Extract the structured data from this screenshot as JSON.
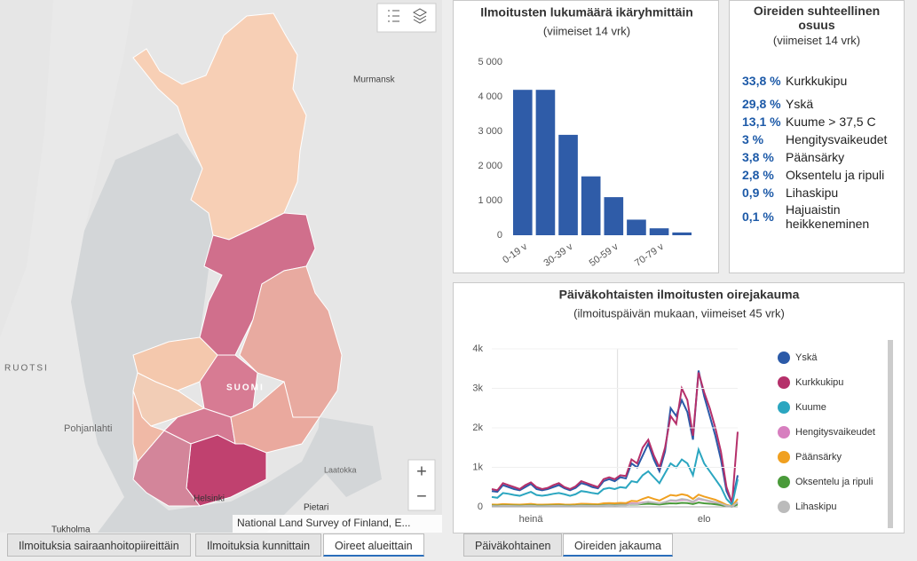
{
  "map": {
    "labels": {
      "murmansk": "Murmansk",
      "ruotsi": "RUOTSI",
      "pohjanlahti": "Pohjanlahti",
      "suomi": "SUOMI",
      "helsinki": "Helsinki",
      "pietari": "Pietari",
      "laatokka": "Laatokka",
      "tukholma": "Tukholma"
    },
    "attribution": "National Land Survey of Finland, E...",
    "zoom_in": "+",
    "zoom_out": "−"
  },
  "tabs_left": [
    "Ilmoituksia sairaanhoitopiireittäin",
    "Ilmoituksia kunnittain",
    "Oireet alueittain"
  ],
  "tabs_right": [
    "Päiväkohtainen",
    "Oireiden jakauma"
  ],
  "symptoms": {
    "title": "Oireiden suhteellinen osuus",
    "subtitle": "(viimeiset 14 vrk)",
    "rows": [
      {
        "share": "33,8 %",
        "label": "Kurkkukipu"
      },
      {
        "share": "29,8 %",
        "label": "Yskä"
      },
      {
        "share": "13,1 %",
        "label": "Kuume > 37,5 C"
      },
      {
        "share": "3 %",
        "label": "Hengitysvaikeudet"
      },
      {
        "share": "3,8 %",
        "label": "Päänsärky"
      },
      {
        "share": "2,8 %",
        "label": "Oksentelu ja ripuli"
      },
      {
        "share": "0,9 %",
        "label": "Lihaskipu"
      },
      {
        "share": "0,1 %",
        "label": "Hajuaistin heikkeneminen"
      }
    ]
  },
  "chart_data": [
    {
      "type": "bar",
      "title": "Ilmoitusten lukumäärä ikäryhmittäin",
      "subtitle": "(viimeiset 14 vrk)",
      "categories": [
        "0-19 v",
        null,
        "30-39 v",
        null,
        "50-59 v",
        null,
        "70-79 v",
        null
      ],
      "values": [
        4200,
        4200,
        2900,
        1700,
        1100,
        450,
        200,
        80
      ],
      "color": "#2f5ca8",
      "ylim": [
        0,
        5000
      ],
      "yticks": [
        {
          "value": 0,
          "label": "0"
        },
        {
          "value": 1000,
          "label": "1 000"
        },
        {
          "value": 2000,
          "label": "2 000"
        },
        {
          "value": 3000,
          "label": "3 000"
        },
        {
          "value": 4000,
          "label": "4 000"
        },
        {
          "value": 5000,
          "label": "5 000"
        }
      ],
      "grid": false
    },
    {
      "type": "line",
      "title": "Päiväkohtaisten ilmoitusten oirejakauma",
      "subtitle": "(ilmoituspäivän mukaan, viimeiset 45 vrk)",
      "categories": [
        null,
        null,
        null,
        null,
        null,
        null,
        null,
        "heinä",
        null,
        null,
        null,
        null,
        null,
        null,
        null,
        null,
        null,
        null,
        null,
        null,
        null,
        null,
        null,
        null,
        null,
        null,
        null,
        null,
        null,
        null,
        null,
        null,
        null,
        null,
        null,
        null,
        null,
        null,
        "elo",
        null,
        null,
        null,
        null,
        null,
        null
      ],
      "ylim": [
        0,
        4000
      ],
      "yticks": [
        0,
        {
          "value": 1000,
          "label": "1k"
        },
        {
          "value": 2000,
          "label": "2k"
        },
        {
          "value": 3000,
          "label": "3k"
        },
        {
          "value": 4000,
          "label": "4k"
        }
      ],
      "series": [
        {
          "name": "Yskä",
          "color": "#2b5aa8",
          "values": [
            400,
            380,
            550,
            500,
            450,
            420,
            500,
            580,
            450,
            420,
            450,
            500,
            550,
            470,
            420,
            480,
            600,
            560,
            500,
            470,
            650,
            700,
            650,
            750,
            720,
            1100,
            1000,
            1300,
            1600,
            1200,
            900,
            1400,
            2500,
            2300,
            2700,
            2400,
            1700,
            3450,
            2800,
            2300,
            1800,
            1200,
            400,
            100,
            800
          ]
        },
        {
          "name": "Kurkkukipu",
          "color": "#b5306a",
          "values": [
            450,
            420,
            600,
            550,
            500,
            450,
            550,
            620,
            500,
            450,
            480,
            550,
            600,
            500,
            450,
            520,
            650,
            600,
            550,
            500,
            700,
            750,
            700,
            800,
            780,
            1200,
            1100,
            1500,
            1700,
            1300,
            1000,
            1500,
            2300,
            2100,
            3000,
            2700,
            1800,
            3400,
            2900,
            2500,
            2000,
            1400,
            500,
            100,
            1900
          ]
        },
        {
          "name": "Kuume",
          "color": "#2ba6c0",
          "values": [
            250,
            230,
            350,
            330,
            300,
            280,
            330,
            380,
            300,
            280,
            300,
            330,
            350,
            320,
            280,
            320,
            400,
            380,
            350,
            330,
            450,
            480,
            450,
            500,
            480,
            650,
            620,
            800,
            900,
            750,
            600,
            850,
            1100,
            1000,
            1200,
            1100,
            800,
            1450,
            1100,
            900,
            700,
            500,
            200,
            50,
            700
          ]
        },
        {
          "name": "Hengitysvaikeudet",
          "color": "#d77fbf",
          "values": [
            40,
            35,
            50,
            45,
            40,
            40,
            45,
            55,
            40,
            40,
            40,
            45,
            50,
            45,
            40,
            45,
            55,
            50,
            50,
            45,
            60,
            65,
            60,
            70,
            65,
            90,
            85,
            110,
            130,
            100,
            80,
            120,
            160,
            150,
            180,
            170,
            120,
            200,
            170,
            140,
            110,
            80,
            30,
            10,
            100
          ]
        },
        {
          "name": "Päänsärky",
          "color": "#f0a020",
          "values": [
            60,
            55,
            70,
            65,
            60,
            55,
            65,
            75,
            60,
            55,
            60,
            65,
            70,
            60,
            55,
            65,
            80,
            75,
            70,
            65,
            90,
            95,
            90,
            100,
            95,
            150,
            140,
            200,
            250,
            200,
            160,
            230,
            300,
            280,
            320,
            290,
            200,
            310,
            260,
            220,
            180,
            120,
            50,
            15,
            200
          ]
        },
        {
          "name": "Oksentelu ja ripuli",
          "color": "#4a9a3a",
          "values": [
            30,
            28,
            35,
            32,
            30,
            28,
            32,
            38,
            30,
            28,
            30,
            32,
            35,
            30,
            28,
            32,
            40,
            38,
            35,
            32,
            45,
            48,
            45,
            50,
            48,
            60,
            58,
            70,
            80,
            70,
            60,
            75,
            90,
            85,
            100,
            95,
            70,
            110,
            90,
            80,
            65,
            45,
            20,
            5,
            60
          ]
        },
        {
          "name": "Lihaskipu",
          "color": "#bbbbbb",
          "values": [
            20,
            18,
            25,
            22,
            20,
            18,
            22,
            28,
            20,
            18,
            20,
            22,
            25,
            20,
            18,
            22,
            30,
            28,
            25,
            22,
            35,
            38,
            35,
            40,
            38,
            70,
            65,
            100,
            130,
            110,
            90,
            120,
            170,
            160,
            200,
            180,
            130,
            220,
            180,
            150,
            120,
            80,
            30,
            8,
            120
          ]
        }
      ],
      "grid": true
    }
  ]
}
